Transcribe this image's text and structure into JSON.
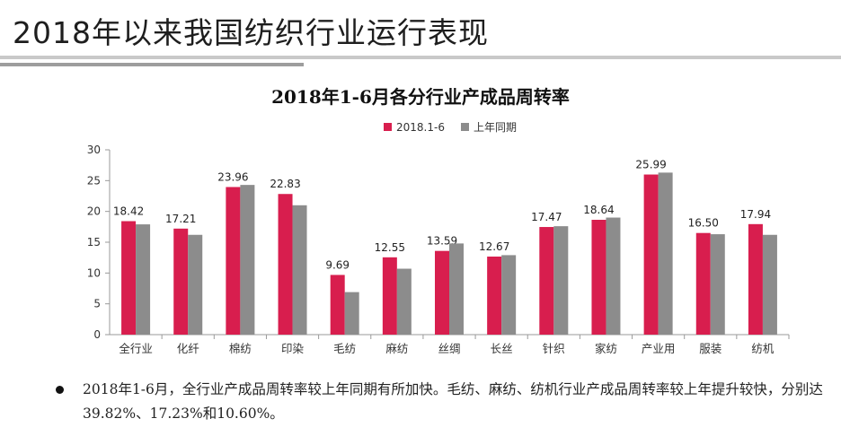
{
  "slide": {
    "title": "2018年以来我国纺织行业运行表现"
  },
  "note": {
    "text": "2018年1-6月，全行业产成品周转率较上年同期有所加快。毛纺、麻纺、纺机行业产成品周转率较上年提升较快，分别达39.82%、17.23%和10.60%。"
  },
  "colors": {
    "current": "#d81e4e",
    "previous": "#8c8c8c"
  },
  "chart_data": {
    "type": "bar",
    "title": "2018年1-6月各分行业产成品周转率",
    "xlabel": "",
    "ylabel": "",
    "ylim": [
      0,
      30
    ],
    "yticks": [
      0,
      5,
      10,
      15,
      20,
      25,
      30
    ],
    "grid": false,
    "legend_position": "top",
    "categories": [
      "全行业",
      "化纤",
      "棉纺",
      "印染",
      "毛纺",
      "麻纺",
      "丝绸",
      "长丝",
      "针织",
      "家纺",
      "产业用",
      "服装",
      "纺机"
    ],
    "series": [
      {
        "name": "2018.1-6",
        "values": [
          18.42,
          17.21,
          23.96,
          22.83,
          9.69,
          12.55,
          13.59,
          12.67,
          17.47,
          18.64,
          25.99,
          16.5,
          17.94
        ],
        "labels": [
          "18.42",
          "17.21",
          "23.96",
          "22.83",
          "9.69",
          "12.55",
          "13.59",
          "12.67",
          "17.47",
          "18.64",
          "25.99",
          "16.50",
          "17.94"
        ]
      },
      {
        "name": "上年同期",
        "values": [
          17.9,
          16.2,
          24.3,
          21.0,
          6.9,
          10.7,
          14.8,
          12.9,
          17.6,
          19.0,
          26.3,
          16.3,
          16.2
        ]
      }
    ]
  }
}
